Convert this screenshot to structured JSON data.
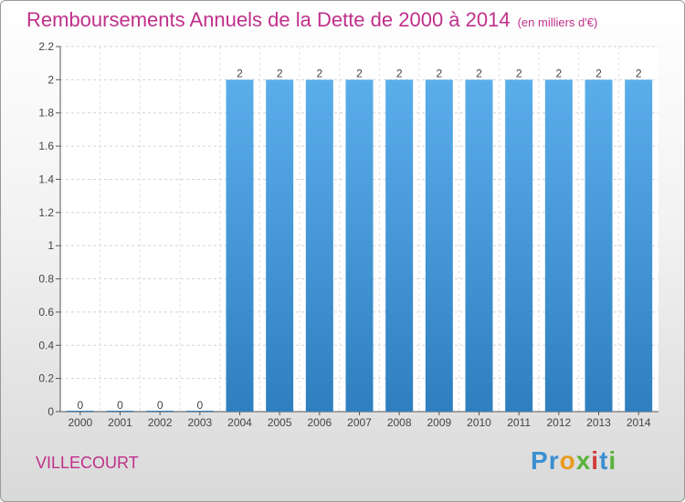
{
  "title": "Remboursements Annuels de la Dette de 2000 à 2014",
  "unit_note": "(en milliers d'€)",
  "commune": "VILLECOURT",
  "logo": {
    "text": "Proxiti",
    "letters": [
      "P",
      "r",
      "o",
      "x",
      "i",
      "t",
      "i"
    ],
    "colors": [
      "#3b8fd1",
      "#3b8fd1",
      "#e89a1c",
      "#59b33a",
      "#d13b3b",
      "#3b8fd1",
      "#59b33a"
    ]
  },
  "colors": {
    "title": "#c0308a",
    "bar_top": "#5aaeea",
    "bar_bottom": "#2f7fbf"
  },
  "chart_data": {
    "type": "bar",
    "categories": [
      "2000",
      "2001",
      "2002",
      "2003",
      "2004",
      "2005",
      "2006",
      "2007",
      "2008",
      "2009",
      "2010",
      "2011",
      "2012",
      "2013",
      "2014"
    ],
    "values": [
      0,
      0,
      0,
      0,
      2,
      2,
      2,
      2,
      2,
      2,
      2,
      2,
      2,
      2,
      2
    ],
    "value_labels": [
      "0",
      "0",
      "0",
      "0",
      "2",
      "2",
      "2",
      "2",
      "2",
      "2",
      "2",
      "2",
      "2",
      "2",
      "2"
    ],
    "ylim": [
      0,
      2.2
    ],
    "yticks": [
      0,
      0.2,
      0.4,
      0.6,
      0.8,
      1,
      1.2,
      1.4,
      1.6,
      1.8,
      2,
      2.2
    ],
    "ytick_labels": [
      "0",
      "0.2",
      "0.4",
      "0.6",
      "0.8",
      "1",
      "1.2",
      "1.4",
      "1.6",
      "1.8",
      "2",
      "2.2"
    ],
    "grid": true,
    "title": "Remboursements Annuels de la Dette de 2000 à 2014",
    "xlabel": "",
    "ylabel": ""
  }
}
